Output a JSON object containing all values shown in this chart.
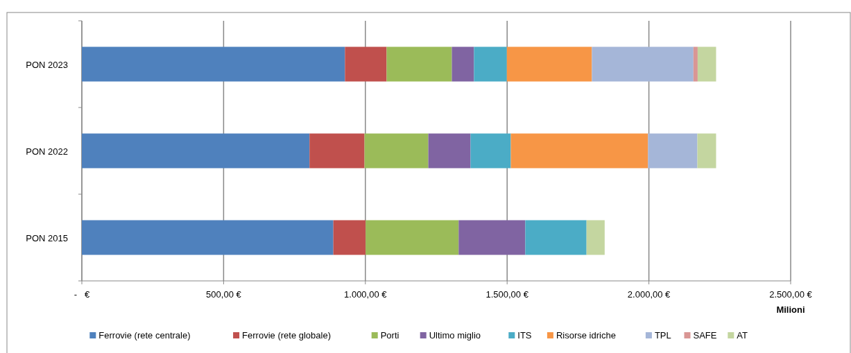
{
  "chart_data": {
    "type": "bar",
    "orientation": "horizontal",
    "stacked": true,
    "categories": [
      "PON 2023",
      "PON 2022",
      "PON 2015"
    ],
    "series": [
      {
        "name": "Ferrovie (rete centrale)",
        "color": "#4f81bd",
        "values": [
          928,
          803,
          887
        ]
      },
      {
        "name": "Ferrovie (rete globale)",
        "color": "#c0504d",
        "values": [
          147,
          194,
          114
        ]
      },
      {
        "name": "Porti",
        "color": "#9bbb59",
        "values": [
          230,
          225,
          328
        ]
      },
      {
        "name": "Ultimo miglio",
        "color": "#8064a2",
        "values": [
          78,
          149,
          235
        ]
      },
      {
        "name": "ITS",
        "color": "#4bacc6",
        "values": [
          116,
          142,
          216
        ]
      },
      {
        "name": "Risorse idriche",
        "color": "#f79646",
        "values": [
          300,
          484,
          null
        ]
      },
      {
        "name": "TPL",
        "color": "#a5b6d8",
        "values": [
          358,
          174,
          null
        ]
      },
      {
        "name": "SAFE",
        "color": "#d99694",
        "values": [
          15,
          null,
          null
        ]
      },
      {
        "name": "AT",
        "color": "#c4d6a0",
        "values": [
          65,
          66,
          64
        ]
      }
    ],
    "xlabel": "Milioni",
    "xlim": [
      0,
      2500
    ],
    "xticks": [
      {
        "value": 0,
        "label": "-   €"
      },
      {
        "value": 500,
        "label": "500,00 €"
      },
      {
        "value": 1000,
        "label": "1.000,00 €"
      },
      {
        "value": 1500,
        "label": "1.500,00 €"
      },
      {
        "value": 2000,
        "label": "2.000,00 €"
      },
      {
        "value": 2500,
        "label": "2.500,00 €"
      }
    ],
    "grid": "x",
    "legend": "bottom"
  }
}
